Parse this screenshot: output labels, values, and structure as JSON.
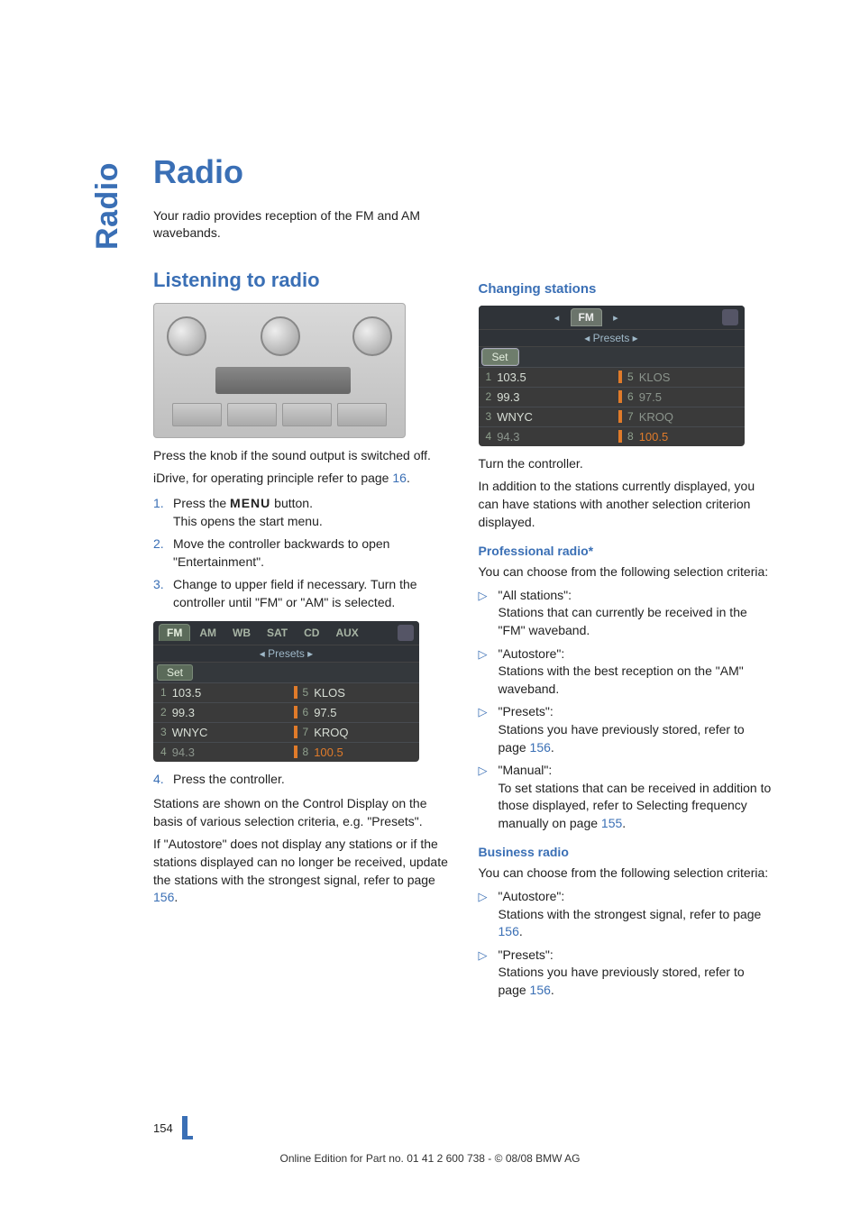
{
  "colors": {
    "accent": "#3a6fb5",
    "body_text": "#222222",
    "screen_bg": "#3a3a3a",
    "screen_bar": "#e07b2a"
  },
  "sidebar_label": "Radio",
  "title": "Radio",
  "intro": "Your radio provides reception of the FM and AM wavebands.",
  "left": {
    "section_title": "Listening to radio",
    "after_illus_1": "Press the knob if the sound output is switched off.",
    "after_illus_2_a": "iDrive, for operating principle refer to page ",
    "after_illus_2_link": "16",
    "after_illus_2_b": ".",
    "steps": [
      {
        "line1_a": "Press the ",
        "menu": "MENU",
        "line1_b": " button.",
        "line2": "This opens the start menu."
      },
      {
        "line1": "Move the controller backwards to open \"Entertainment\"."
      },
      {
        "line1": "Change to upper field if necessary. Turn the controller until \"FM\" or \"AM\" is selected."
      }
    ],
    "step4": "Press the controller.",
    "para_a": "Stations are shown on the Control Display on the basis of various selection criteria, e.g. \"Presets\".",
    "para_b_a": "If \"Autostore\" does not display any stations or if the stations displayed can no longer be received, update the stations with the strongest signal, refer to page ",
    "para_b_link": "156",
    "para_b_b": "."
  },
  "right": {
    "h3_changing": "Changing stations",
    "after_screen_1": "Turn the controller.",
    "after_screen_2": "In addition to the stations currently displayed, you can have stations with another selection criterion displayed.",
    "h4_prof": "Professional radio*",
    "prof_intro": "You can choose from the following selection criteria:",
    "prof_items": [
      {
        "t": "\"All stations\":",
        "d": "Stations that can currently be received in the \"FM\" waveband."
      },
      {
        "t": "\"Autostore\":",
        "d": "Stations with the best reception on the \"AM\" waveband."
      },
      {
        "t": "\"Presets\":",
        "d_a": "Stations you have previously stored, refer to page ",
        "d_link": "156",
        "d_b": "."
      },
      {
        "t": "\"Manual\":",
        "d_a": "To set stations that can be received in addition to those displayed, refer to Selecting frequency manually on page ",
        "d_link": "155",
        "d_b": "."
      }
    ],
    "h4_bus": "Business radio",
    "bus_intro": "You can choose from the following selection criteria:",
    "bus_items": [
      {
        "t": "\"Autostore\":",
        "d_a": "Stations with the strongest signal, refer to page ",
        "d_link": "156",
        "d_b": "."
      },
      {
        "t": "\"Presets\":",
        "d_a": "Stations you have previously stored, refer to page ",
        "d_link": "156",
        "d_b": "."
      }
    ]
  },
  "screen1": {
    "tabs": [
      "FM",
      "AM",
      "WB",
      "SAT",
      "CD",
      "AUX"
    ],
    "active_tab": "FM",
    "presets_label": "◂  Presets  ▸",
    "set_label": "Set",
    "rows": [
      [
        "1",
        "103.5",
        "5",
        "KLOS"
      ],
      [
        "2",
        "99.3",
        "6",
        "97.5"
      ],
      [
        "3",
        "WNYC",
        "7",
        "KROQ"
      ],
      [
        "4",
        "94.3",
        "8",
        "100.5"
      ]
    ]
  },
  "screen2": {
    "fm_label": "FM",
    "arrows": "◂            ▸",
    "presets_label": "◂  Presets  ▸",
    "set_label": "Set",
    "rows": [
      [
        "1",
        "103.5",
        "5",
        "KLOS"
      ],
      [
        "2",
        "99.3",
        "6",
        "97.5"
      ],
      [
        "3",
        "WNYC",
        "7",
        "KROQ"
      ],
      [
        "4",
        "94.3",
        "8",
        "100.5"
      ]
    ]
  },
  "footer": {
    "page_number": "154",
    "line": "Online Edition for Part no. 01 41 2 600 738 - © 08/08 BMW AG"
  }
}
